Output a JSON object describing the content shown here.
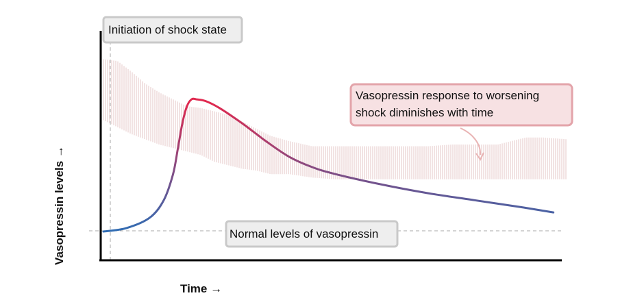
{
  "chart_data": {
    "type": "line",
    "xlabel": "Time →",
    "ylabel": "Vasopressin levels →",
    "xlim": [
      0,
      100
    ],
    "ylim": [
      0,
      100
    ],
    "grid": false,
    "series": [
      {
        "x": [
          0,
          5,
          10,
          13,
          15,
          16,
          17,
          18,
          19,
          20,
          22,
          25,
          30,
          35,
          40,
          45,
          50,
          60,
          70,
          80,
          90,
          97
        ],
        "y": [
          0,
          2,
          8,
          18,
          33,
          47,
          62,
          72,
          76,
          76,
          75,
          71,
          62,
          52,
          43,
          37,
          33,
          27,
          22,
          18,
          14,
          11
        ]
      }
    ],
    "band": {
      "x": [
        0,
        3,
        6,
        9,
        12,
        15,
        18,
        21,
        24,
        27,
        30,
        33,
        36,
        40,
        45,
        50,
        55,
        60,
        65,
        70,
        75,
        80,
        85,
        88,
        91,
        95,
        100
      ],
      "upper": [
        99,
        98,
        92,
        85,
        80,
        76,
        72,
        71,
        69,
        67,
        63,
        59,
        55,
        52,
        49,
        49,
        49,
        49,
        49,
        49,
        50,
        50,
        50,
        52,
        54,
        54,
        53
      ],
      "lower": [
        64,
        60,
        56,
        53,
        50,
        48,
        46,
        44,
        40,
        38,
        36,
        35,
        33,
        33,
        31,
        30,
        30,
        30,
        30,
        30,
        30,
        30,
        30,
        30,
        30,
        30,
        30
      ]
    },
    "reference_lines": {
      "normal_level": 0,
      "shock_initiation": 1.5
    },
    "annotations": {
      "shock_initiation": "Initiation of shock state",
      "normal_levels": "Normal levels of vasopressin",
      "response": [
        "Vasopressin response to worsening",
        "shock diminishes with time"
      ]
    },
    "colors": {
      "line_start": "#2e6db4",
      "line_peak": "#e0294f",
      "band": "#e6c7c7",
      "axis": "#000000",
      "dashed": "#aaaaaa",
      "arrow": "#e9b4b4"
    }
  }
}
